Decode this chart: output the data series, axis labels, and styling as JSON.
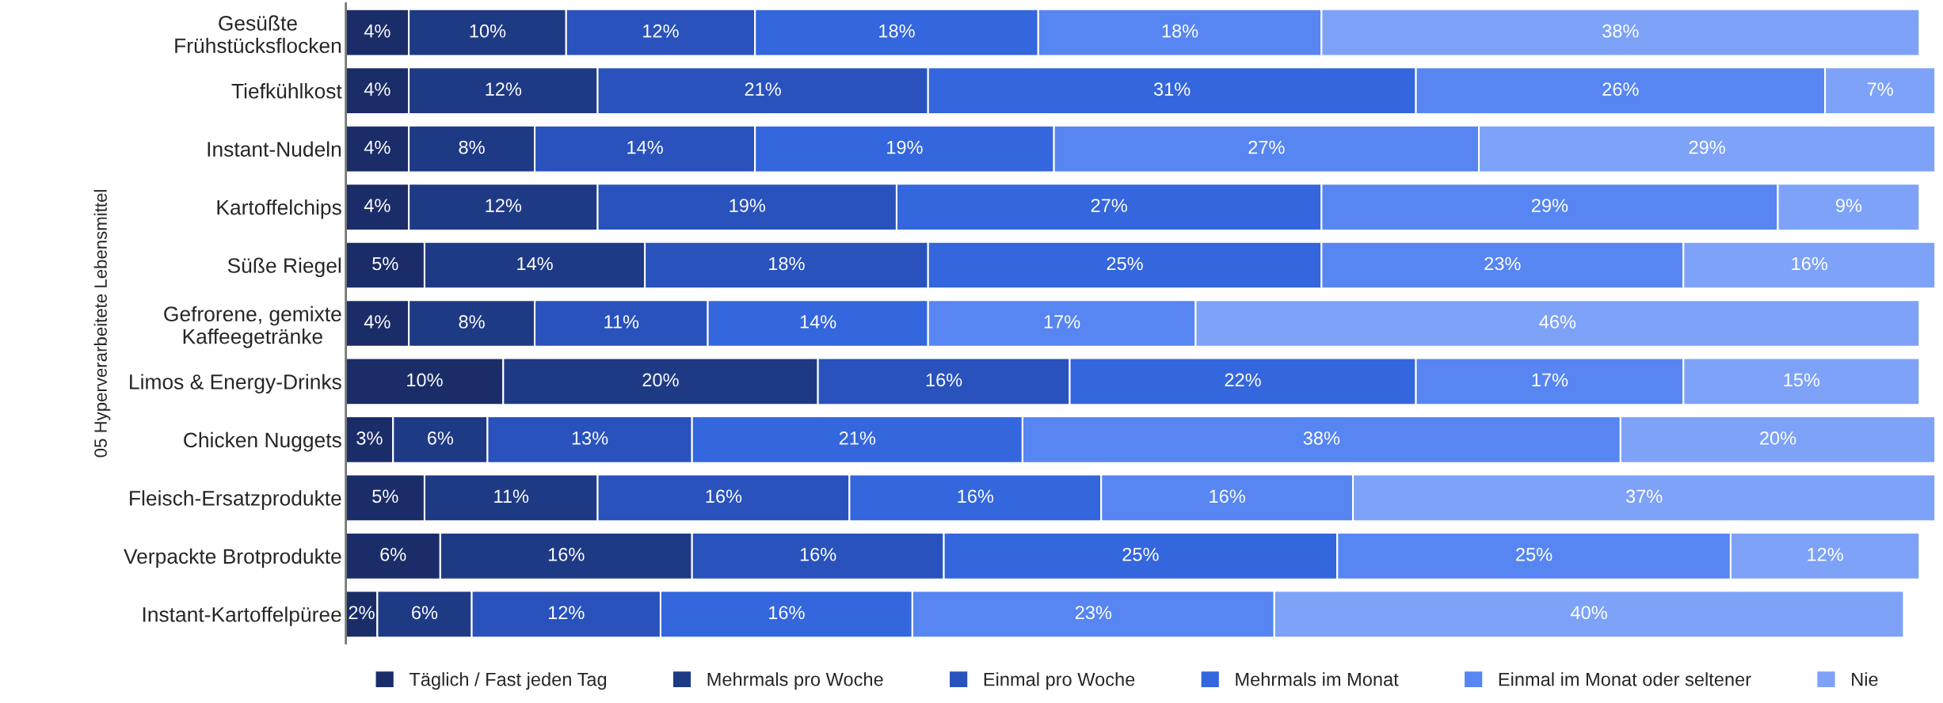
{
  "chart_data": {
    "type": "bar",
    "orientation": "horizontal",
    "stacked": true,
    "ylabel": "05 Hyperverarbeitete Lebensmittel",
    "legend": "bottom",
    "tick_labels": "y",
    "grid": false,
    "categories": [
      "Gesüßte\nFrühstücksflocken",
      "Tiefkühlkost",
      "Instant-Nudeln",
      "Kartoffelchips",
      "Süße Riegel",
      "Gefrorene, gemixte\nKaffeegetränke",
      "Limos & Energy-Drinks",
      "Chicken Nuggets",
      "Fleisch-Ersatzprodukte",
      "Verpackte Brotprodukte",
      "Instant-Kartoffelpüree"
    ],
    "series": [
      {
        "name": "Täglich / Fast jeden Tag",
        "color": "#1b2d69",
        "values": [
          4,
          4,
          4,
          4,
          5,
          4,
          10,
          3,
          5,
          6,
          2
        ],
        "value_labels": [
          "4%",
          "4%",
          "4%",
          "4%",
          "5%",
          "4%",
          "10%",
          "3%",
          "5%",
          "6%",
          "2%"
        ]
      },
      {
        "name": "Mehrmals pro Woche",
        "color": "#1f3a85",
        "values": [
          10,
          12,
          8,
          12,
          14,
          8,
          20,
          6,
          11,
          16,
          6
        ],
        "value_labels": [
          "10%",
          "12%",
          "8%",
          "12%",
          "14%",
          "8%",
          "20%",
          "6%",
          "11%",
          "16%",
          "6%"
        ]
      },
      {
        "name": "Einmal pro Woche",
        "color": "#2952bd",
        "values": [
          12,
          21,
          14,
          19,
          18,
          11,
          16,
          13,
          16,
          16,
          12
        ],
        "value_labels": [
          "12%",
          "21%",
          "14%",
          "19%",
          "18%",
          "11%",
          "16%",
          "13%",
          "16%",
          "16%",
          "12%"
        ]
      },
      {
        "name": "Mehrmals im Monat",
        "color": "#3466dd",
        "values": [
          18,
          31,
          19,
          27,
          25,
          14,
          22,
          21,
          16,
          25,
          16
        ],
        "value_labels": [
          "18%",
          "31%",
          "19%",
          "27%",
          "25%",
          "14%",
          "22%",
          "21%",
          "16%",
          "25%",
          "16%"
        ]
      },
      {
        "name": "Einmal im Monat oder seltener",
        "color": "#5786f2",
        "values": [
          18,
          26,
          27,
          29,
          23,
          17,
          17,
          38,
          16,
          25,
          23
        ],
        "value_labels": [
          "18%",
          "26%",
          "27%",
          "29%",
          "23%",
          "17%",
          "17%",
          "38%",
          "16%",
          "25%",
          "23%"
        ]
      },
      {
        "name": "Nie",
        "color": "#7da2f8",
        "values": [
          38,
          7,
          29,
          9,
          16,
          46,
          15,
          20,
          37,
          12,
          40
        ],
        "value_labels": [
          "38%",
          "7%",
          "29%",
          "9%",
          "16%",
          "46%",
          "15%",
          "20%",
          "37%",
          "12%",
          "40%"
        ]
      }
    ]
  }
}
